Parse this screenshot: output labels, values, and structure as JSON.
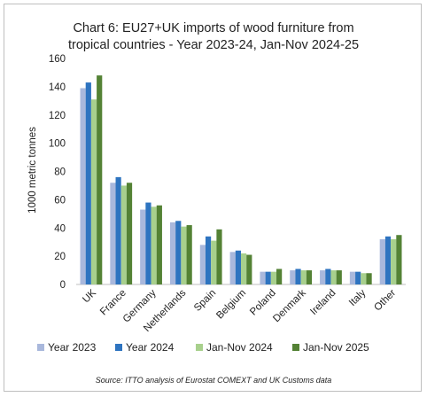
{
  "chart_data": {
    "type": "bar",
    "title_line1": "Chart 6: EU27+UK imports of wood furniture from",
    "title_line2": "tropical countries - Year 2023-24, Jan-Nov 2024-25",
    "ylabel": "1000 metric tonnes",
    "xlabel": "",
    "ylim": [
      0,
      160
    ],
    "yticks": [
      0,
      20,
      40,
      60,
      80,
      100,
      120,
      140,
      160
    ],
    "grid": false,
    "legend_position": "bottom",
    "categories": [
      "UK",
      "France",
      "Germany",
      "Netherlands",
      "Spain",
      "Belgium",
      "Poland",
      "Denmark",
      "Ireland",
      "Italy",
      "Other"
    ],
    "series": [
      {
        "name": "Year 2023",
        "color": "#a9b8dc",
        "values": [
          139,
          72,
          53,
          44,
          28,
          23,
          9,
          10,
          10,
          9,
          32
        ]
      },
      {
        "name": "Year 2024",
        "color": "#2e74c0",
        "values": [
          143,
          76,
          58,
          45,
          34,
          24,
          9,
          11,
          11,
          9,
          34
        ]
      },
      {
        "name": "Jan-Nov 2024",
        "color": "#a8d08d",
        "values": [
          131,
          70,
          55,
          41,
          31,
          22,
          9,
          10,
          10,
          8,
          32
        ]
      },
      {
        "name": "Jan-Nov 2025",
        "color": "#548235",
        "values": [
          148,
          72,
          56,
          42,
          39,
          21,
          11,
          10,
          10,
          8,
          35
        ]
      }
    ],
    "source": "Source: ITTO analysis of Eurostat COMEXT and UK Customs data"
  }
}
